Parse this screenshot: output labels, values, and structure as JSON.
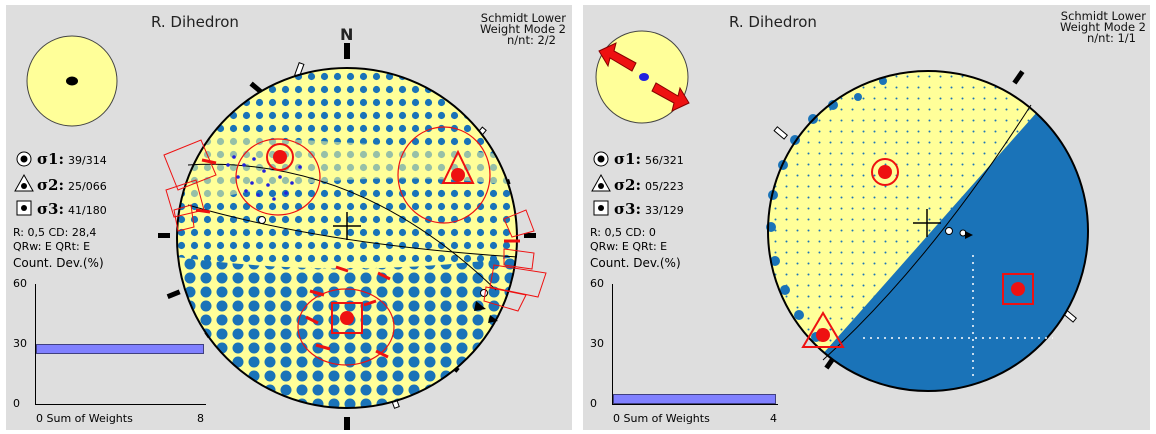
{
  "colors": {
    "yellow": "#ffff99",
    "blue": "#1a73b8",
    "red": "#ee1111",
    "dot_blue": "#2222dd",
    "bar": "#8080ff",
    "panel_bg": "#dedede"
  },
  "left": {
    "title": "R. Dihedron",
    "projection": "Schmidt Lower",
    "weight_mode": "Weight Mode 2",
    "nnt": "n/nt: 2/2",
    "north": "N",
    "sigma1": {
      "label": "σ1:",
      "value": "39/314"
    },
    "sigma2": {
      "label": "σ2:",
      "value": "25/066"
    },
    "sigma3": {
      "label": "σ3:",
      "value": "41/180"
    },
    "r_cd": "R: 0,5  CD: 28,4",
    "qr": "QRw: E  QRt: E",
    "count_dev": "Count. Dev.(%)",
    "y_ticks": [
      "60",
      "30",
      "0"
    ],
    "x_axis": "0  Sum of Weights",
    "x_max": "8",
    "bar_value": 27
  },
  "right": {
    "title": "R. Dihedron",
    "projection": "Schmidt Lower",
    "weight_mode": "Weight Mode 2",
    "nnt": "n/nt: 1/1",
    "sigma1": {
      "label": "σ1:",
      "value": "56/321"
    },
    "sigma2": {
      "label": "σ2:",
      "value": "05/223"
    },
    "sigma3": {
      "label": "σ3:",
      "value": "33/129"
    },
    "r_cd": "R: 0,5  CD: 0",
    "qr": "QRw: E  QRt: E",
    "count_dev": "Count. Dev.(%)",
    "y_ticks": [
      "60",
      "30",
      "0"
    ],
    "x_axis": "0  Sum of Weights",
    "x_max": "4",
    "bar_value": 3
  }
}
